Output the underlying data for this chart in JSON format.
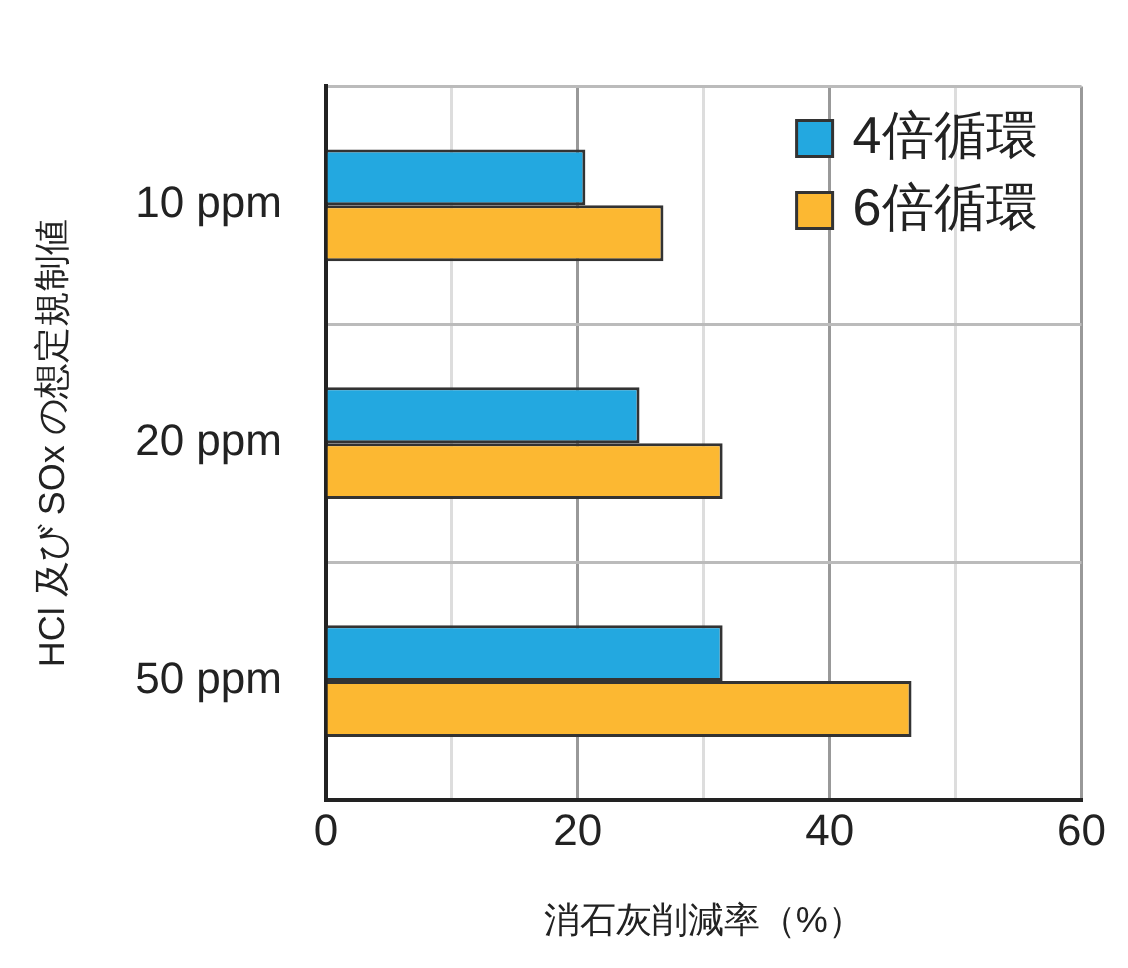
{
  "chart_data": {
    "type": "bar",
    "orientation": "horizontal",
    "xlabel": "消石灰削減率（%）",
    "ylabel": "HCl 及び SOx の想定規制値",
    "categories": [
      "10 ppm",
      "20 ppm",
      "50 ppm"
    ],
    "series": [
      {
        "name": "4倍循環",
        "color": "#23a8e0",
        "values": [
          20.6,
          24.9,
          31.5
        ]
      },
      {
        "name": "6倍循環",
        "color": "#fcb832",
        "values": [
          26.8,
          31.5,
          46.5
        ]
      }
    ],
    "xlim": [
      0,
      60
    ],
    "xticks": [
      0,
      {
        "value": 10,
        "label": null
      },
      20,
      {
        "value": 30,
        "label": null
      },
      40,
      {
        "value": 50,
        "label": null
      },
      60
    ],
    "grid": true,
    "legend": "top right"
  }
}
